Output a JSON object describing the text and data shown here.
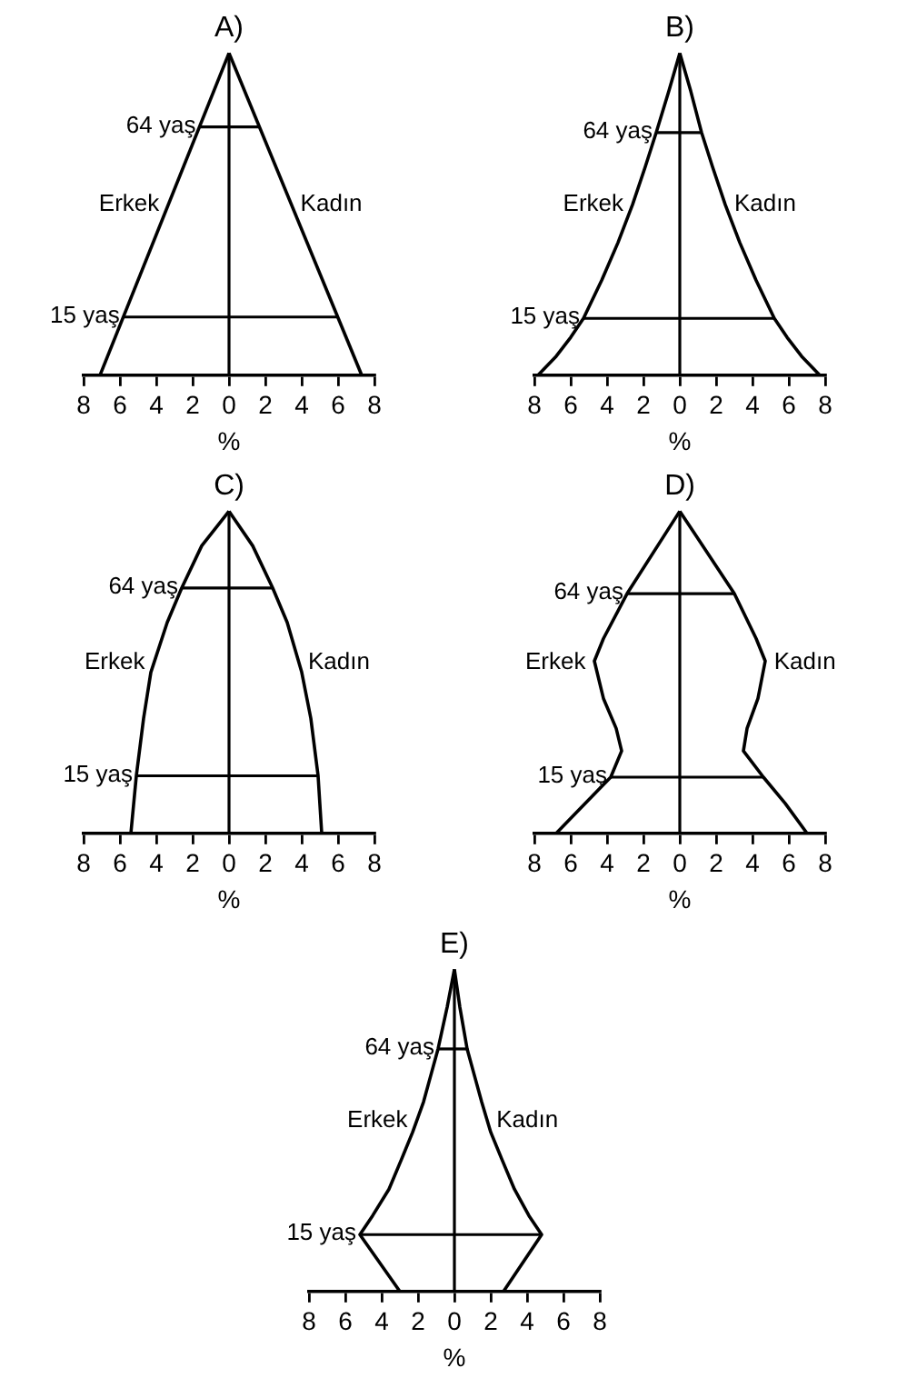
{
  "chart_data": [
    {
      "type": "line",
      "title": "A)",
      "xlabel": "%",
      "xlim": [
        -8,
        8
      ],
      "xticks": [
        {
          "value": -8,
          "label": "8"
        },
        {
          "value": -6,
          "label": "6"
        },
        {
          "value": -4,
          "label": "4"
        },
        {
          "value": -2,
          "label": "2"
        },
        0,
        2,
        4,
        6,
        8
      ],
      "ylim": [
        0,
        83
      ],
      "tick_labels": "x",
      "series": [
        {
          "name": "Erkek",
          "color": "#000000",
          "x": [
            -7.1,
            0
          ],
          "values": [
            0,
            83
          ]
        },
        {
          "name": "Kadın",
          "color": "#000000",
          "x": [
            7.3,
            0
          ],
          "values": [
            0,
            83
          ]
        }
      ],
      "ref_lines": [
        {
          "axis": "x",
          "value": 0
        },
        {
          "axis": "y",
          "value": 15,
          "label": "15 yaş"
        },
        {
          "axis": "y",
          "value": 64,
          "label": "64 yaş"
        }
      ]
    },
    {
      "type": "line",
      "title": "B)",
      "xlabel": "%",
      "xlim": [
        -8,
        8
      ],
      "xticks": [
        {
          "value": -8,
          "label": "8"
        },
        {
          "value": -6,
          "label": "6"
        },
        {
          "value": -4,
          "label": "4"
        },
        {
          "value": -2,
          "label": "2"
        },
        0,
        2,
        4,
        6,
        8
      ],
      "ylim": [
        0,
        85
      ],
      "tick_labels": "x",
      "series": [
        {
          "name": "Erkek",
          "color": "#000000",
          "x": [
            -7.8,
            -6.8,
            -6.0,
            -5.3,
            -4.3,
            -3.4,
            -2.6,
            -1.9,
            -1.3,
            -0.6,
            0
          ],
          "values": [
            0,
            5,
            10,
            15,
            25,
            35,
            45,
            55,
            64,
            75,
            85
          ]
        },
        {
          "name": "Kadın",
          "color": "#000000",
          "x": [
            7.7,
            6.7,
            5.9,
            5.2,
            4.2,
            3.3,
            2.5,
            1.8,
            1.2,
            0.6,
            0
          ],
          "values": [
            0,
            5,
            10,
            15,
            25,
            35,
            45,
            55,
            64,
            75,
            85
          ]
        }
      ],
      "ref_lines": [
        {
          "axis": "x",
          "value": 0
        },
        {
          "axis": "y",
          "value": 15,
          "label": "15 yaş"
        },
        {
          "axis": "y",
          "value": 64,
          "label": "64 yaş"
        }
      ]
    },
    {
      "type": "line",
      "title": "C)",
      "xlabel": "%",
      "xlim": [
        -8,
        8
      ],
      "xticks": [
        {
          "value": -8,
          "label": "8"
        },
        {
          "value": -6,
          "label": "6"
        },
        {
          "value": -4,
          "label": "4"
        },
        {
          "value": -2,
          "label": "2"
        },
        0,
        2,
        4,
        6,
        8
      ],
      "ylim": [
        0,
        84
      ],
      "tick_labels": "x",
      "series": [
        {
          "name": "Erkek",
          "color": "#000000",
          "x": [
            -5.4,
            -5.1,
            -4.7,
            -4.3,
            -3.4,
            -2.6,
            -1.5,
            0
          ],
          "values": [
            0,
            15,
            30,
            42,
            55,
            64,
            75,
            84
          ]
        },
        {
          "name": "Kadın",
          "color": "#000000",
          "x": [
            5.1,
            4.9,
            4.5,
            4.0,
            3.2,
            2.4,
            1.3,
            0
          ],
          "values": [
            0,
            15,
            30,
            42,
            55,
            64,
            75,
            84
          ]
        }
      ],
      "ref_lines": [
        {
          "axis": "x",
          "value": 0
        },
        {
          "axis": "y",
          "value": 15,
          "label": "15 yaş"
        },
        {
          "axis": "y",
          "value": 64,
          "label": "64 yaş"
        }
      ]
    },
    {
      "type": "line",
      "title": "D)",
      "xlabel": "%",
      "xlim": [
        -8,
        8
      ],
      "xticks": [
        {
          "value": -8,
          "label": "8"
        },
        {
          "value": -6,
          "label": "6"
        },
        {
          "value": -4,
          "label": "4"
        },
        {
          "value": -2,
          "label": "2"
        },
        0,
        2,
        4,
        6,
        8
      ],
      "ylim": [
        0,
        86
      ],
      "tick_labels": "x",
      "series": [
        {
          "name": "Erkek",
          "color": "#000000",
          "x": [
            -6.8,
            -5.2,
            -3.8,
            -3.2,
            -3.5,
            -4.2,
            -4.7,
            -4.2,
            -2.9,
            0
          ],
          "values": [
            0,
            8,
            15,
            22,
            28,
            36,
            46,
            52,
            64,
            86
          ]
        },
        {
          "name": "Kadın",
          "color": "#000000",
          "x": [
            7.0,
            5.8,
            4.6,
            3.5,
            3.7,
            4.3,
            4.7,
            4.2,
            3.0,
            0
          ],
          "values": [
            0,
            8,
            15,
            22,
            28,
            36,
            46,
            52,
            64,
            86
          ]
        }
      ],
      "ref_lines": [
        {
          "axis": "x",
          "value": 0
        },
        {
          "axis": "y",
          "value": 15,
          "label": "15 yaş"
        },
        {
          "axis": "y",
          "value": 64,
          "label": "64 yaş"
        }
      ]
    },
    {
      "type": "line",
      "title": "E)",
      "xlabel": "%",
      "xlim": [
        -8,
        8
      ],
      "xticks": [
        {
          "value": -8,
          "label": "8"
        },
        {
          "value": -6,
          "label": "6"
        },
        {
          "value": -4,
          "label": "4"
        },
        {
          "value": -2,
          "label": "2"
        },
        0,
        2,
        4,
        6,
        8
      ],
      "ylim": [
        0,
        85
      ],
      "tick_labels": "x",
      "series": [
        {
          "name": "Erkek",
          "color": "#000000",
          "x": [
            -3.0,
            -5.2,
            -4.5,
            -3.6,
            -2.9,
            -2.3,
            -1.7,
            -1.3,
            -0.9,
            -0.4,
            0
          ],
          "values": [
            0,
            15,
            20,
            27,
            35,
            42,
            50,
            57,
            64,
            75,
            85
          ]
        },
        {
          "name": "Kadın",
          "color": "#000000",
          "x": [
            2.7,
            4.8,
            4.1,
            3.3,
            2.6,
            2.0,
            1.5,
            1.1,
            0.7,
            0.3,
            0
          ],
          "values": [
            0,
            15,
            20,
            27,
            35,
            42,
            50,
            57,
            64,
            75,
            85
          ]
        }
      ],
      "ref_lines": [
        {
          "axis": "x",
          "value": 0
        },
        {
          "axis": "y",
          "value": 15,
          "label": "15 yaş"
        },
        {
          "axis": "y",
          "value": 64,
          "label": "64 yaş"
        }
      ]
    }
  ]
}
